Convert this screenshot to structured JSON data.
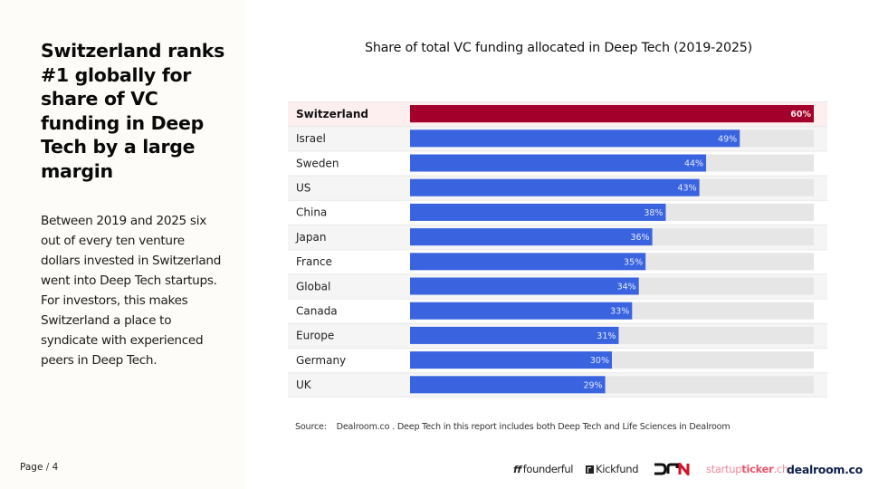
{
  "headline": "Switzerland ranks #1 globally for share of VC funding in Deep Tech by a large margin",
  "body": "Between 2019 and 2025 six out of every ten venture dollars invested in Switzerland went into Deep Tech startups. For investors, this makes Switzerland a place to syndicate with experienced peers in Deep Tech.",
  "footer": {
    "page_label": "Page",
    "page_sep": "/",
    "page_number": "4"
  },
  "source": {
    "label": "Source:",
    "text": "Dealroom.co . Deep Tech in this report includes both Deep Tech and Life Sciences in Dealroom"
  },
  "logos": {
    "founderful": "founderful",
    "kickfund": "Kickfund",
    "dtn": "DTN",
    "startupticker_a": "startup",
    "startupticker_b": "ticker",
    "startupticker_c": ".ch",
    "dealroom": "dealroom.co"
  },
  "colors": {
    "highlight_bar": "#a3002b",
    "highlight_row_bg": "#fdeef0",
    "bar": "#3a63e0",
    "track": "#e6e6e6",
    "row_bg_alt": "#f5f5f5",
    "row_bg": "#ffffff"
  },
  "chart_data": {
    "type": "bar",
    "orientation": "horizontal",
    "title": "Share of total VC funding allocated in Deep Tech (2019-2025)",
    "xlabel": "",
    "ylabel": "",
    "xlim": [
      0,
      60
    ],
    "unit": "%",
    "highlight": "Switzerland",
    "categories": [
      "Switzerland",
      "Israel",
      "Sweden",
      "US",
      "China",
      "Japan",
      "France",
      "Global",
      "Canada",
      "Europe",
      "Germany",
      "UK"
    ],
    "values": [
      60,
      49,
      44,
      43,
      38,
      36,
      35,
      34,
      33,
      31,
      30,
      29
    ],
    "labels": [
      "60%",
      "49%",
      "44%",
      "43%",
      "38%",
      "36%",
      "35%",
      "34%",
      "33%",
      "31%",
      "30%",
      "29%"
    ],
    "grid": false,
    "legend": "none"
  }
}
